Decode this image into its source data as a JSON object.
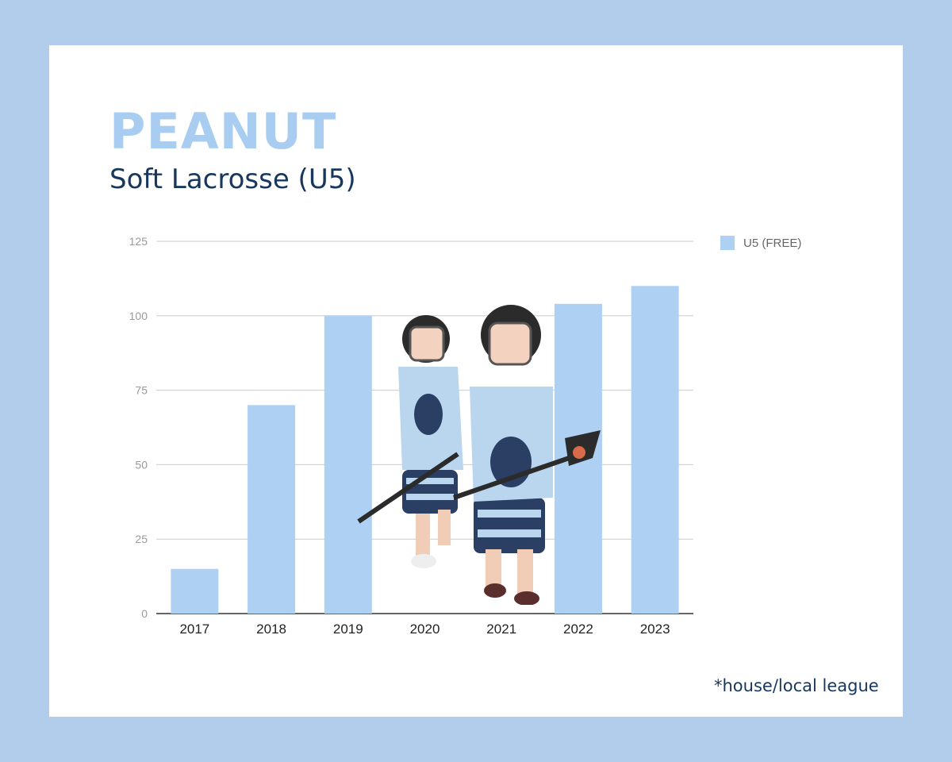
{
  "header": {
    "title": "PEANUT",
    "subtitle": "Soft Lacrosse (U5)"
  },
  "footnote": "*house/local league",
  "colors": {
    "background": "#b2cdeb",
    "bar": "#aed0f2",
    "title": "#a9cdf0",
    "subtitle": "#17375c"
  },
  "chart_data": {
    "type": "bar",
    "categories": [
      "2017",
      "2018",
      "2019",
      "2020",
      "2021",
      "2022",
      "2023"
    ],
    "series": [
      {
        "name": "U5 (FREE)",
        "values": [
          15,
          70,
          100,
          null,
          null,
          104,
          110
        ]
      }
    ],
    "ylim": [
      0,
      125
    ],
    "yticks": [
      "0",
      "25",
      "50",
      "75",
      "100",
      "125"
    ],
    "grid": true,
    "legend_position": "top-right"
  },
  "photo": {
    "icon": "children-lacrosse-players-photo"
  }
}
